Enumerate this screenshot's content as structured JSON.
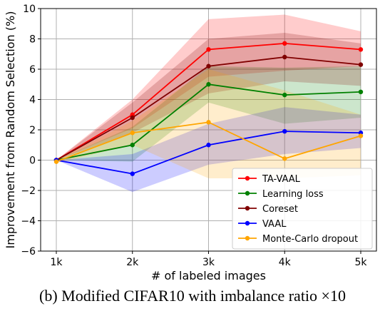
{
  "caption": "(b) Modified CIFAR10 with imbalance ratio ×10",
  "chart_data": {
    "type": "line",
    "xlabel": "# of labeled images",
    "ylabel": "Improvement from Random Selection (%)",
    "categories": [
      "1k",
      "2k",
      "3k",
      "4k",
      "5k"
    ],
    "ylim": [
      -6,
      10
    ],
    "yticks": [
      -6,
      -4,
      -2,
      0,
      2,
      4,
      6,
      8,
      10
    ],
    "ytick_labels": [
      "−6",
      "−4",
      "−2",
      "0",
      "2",
      "4",
      "6",
      "8",
      "10"
    ],
    "grid": true,
    "legend_position": "bottom-right",
    "series": [
      {
        "name": "TA-VAAL",
        "color": "#ff0000",
        "values": [
          0.0,
          3.0,
          7.3,
          7.7,
          7.3
        ],
        "band_low": [
          0.0,
          2.1,
          5.5,
          5.9,
          6.2
        ],
        "band_high": [
          0.0,
          4.0,
          9.3,
          9.6,
          8.5
        ]
      },
      {
        "name": "Learning loss",
        "color": "#008000",
        "values": [
          0.0,
          1.0,
          5.0,
          4.3,
          4.5
        ],
        "band_low": [
          0.0,
          -0.1,
          3.8,
          2.4,
          2.8
        ],
        "band_high": [
          0.0,
          2.2,
          6.2,
          6.1,
          6.2
        ]
      },
      {
        "name": "Coreset",
        "color": "#800000",
        "values": [
          0.0,
          2.8,
          6.2,
          6.8,
          6.3
        ],
        "band_low": [
          0.0,
          1.8,
          4.4,
          5.2,
          4.9
        ],
        "band_high": [
          0.0,
          3.8,
          8.0,
          8.4,
          7.7
        ]
      },
      {
        "name": "VAAL",
        "color": "#0000ff",
        "values": [
          0.0,
          -0.9,
          1.0,
          1.9,
          1.8
        ],
        "band_low": [
          0.0,
          -2.1,
          -0.3,
          0.4,
          0.8
        ],
        "band_high": [
          0.0,
          0.4,
          2.4,
          3.5,
          3.0
        ]
      },
      {
        "name": "Monte-Carlo dropout",
        "color": "#ffa500",
        "values": [
          -0.1,
          1.8,
          2.5,
          0.1,
          1.6
        ],
        "band_low": [
          -0.2,
          1.0,
          -1.2,
          -1.2,
          -1.0
        ],
        "band_high": [
          0.0,
          2.6,
          6.0,
          4.6,
          3.0
        ]
      }
    ]
  }
}
